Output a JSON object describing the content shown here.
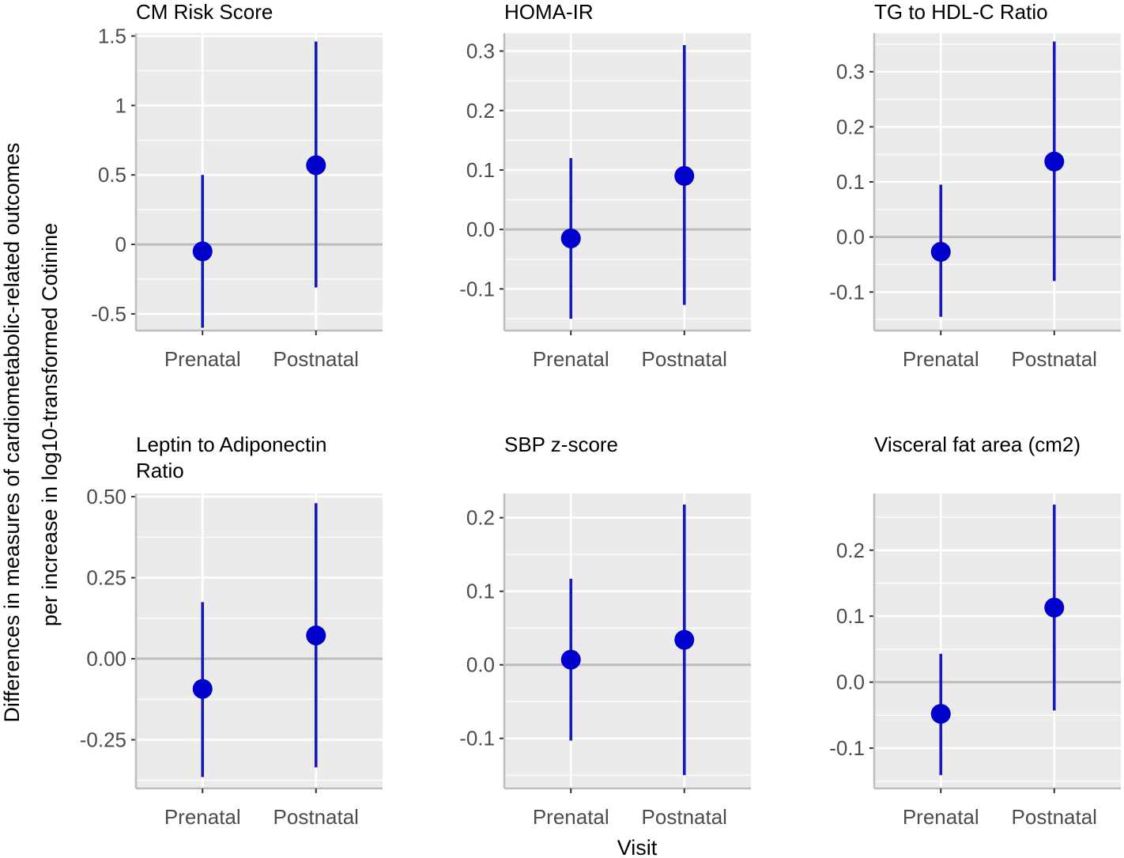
{
  "chart_data": {
    "type": "scatter",
    "description_free": true,
    "xlabel": "Visit",
    "ylabel_line1": "Differences in measures of cardiometabolic-related outcomes",
    "ylabel_line2": "per increase in log10-transformed Cotinine",
    "categories": [
      "Prenatal",
      "Postnatal"
    ],
    "point_color": "#0000CD",
    "line_color": "#1919B8",
    "panel_bg": "#EBEBEB",
    "grid_color": "#FFFFFF",
    "zero_line_color": "#BDBDBD",
    "panels": [
      {
        "title_lines": [
          "CM Risk Score"
        ],
        "ylim": [
          -0.62,
          1.52
        ],
        "ticks": [
          -0.5,
          0,
          0.5,
          1,
          1.5
        ],
        "tick_labels": [
          "-0.5",
          "0",
          "0.5",
          "1",
          "1.5"
        ],
        "estimates": [
          -0.05,
          0.57
        ],
        "lower": [
          -0.6,
          -0.31
        ],
        "upper": [
          0.5,
          1.46
        ]
      },
      {
        "title_lines": [
          "HOMA-IR"
        ],
        "ylim": [
          -0.17,
          0.33
        ],
        "ticks": [
          -0.1,
          0.0,
          0.1,
          0.2,
          0.3
        ],
        "tick_labels": [
          "-0.1",
          "0.0",
          "0.1",
          "0.2",
          "0.3"
        ],
        "estimates": [
          -0.015,
          0.09
        ],
        "lower": [
          -0.15,
          -0.127
        ],
        "upper": [
          0.12,
          0.31
        ]
      },
      {
        "title_lines": [
          "TG to HDL-C Ratio"
        ],
        "ylim": [
          -0.17,
          0.37
        ],
        "ticks": [
          -0.1,
          0.0,
          0.1,
          0.2,
          0.3
        ],
        "tick_labels": [
          "-0.1",
          "0.0",
          "0.1",
          "0.2",
          "0.3"
        ],
        "estimates": [
          -0.027,
          0.137
        ],
        "lower": [
          -0.145,
          -0.08
        ],
        "upper": [
          0.095,
          0.355
        ]
      },
      {
        "title_lines": [
          "Leptin to Adiponectin",
          "Ratio"
        ],
        "ylim": [
          -0.4,
          0.51
        ],
        "ticks": [
          -0.25,
          0.0,
          0.25,
          0.5
        ],
        "tick_labels": [
          "-0.25",
          "0.00",
          "0.25",
          "0.50"
        ],
        "estimates": [
          -0.093,
          0.072
        ],
        "lower": [
          -0.365,
          -0.335
        ],
        "upper": [
          0.175,
          0.48
        ]
      },
      {
        "title_lines": [
          "SBP z-score"
        ],
        "ylim": [
          -0.168,
          0.233
        ],
        "ticks": [
          -0.1,
          0.0,
          0.1,
          0.2
        ],
        "tick_labels": [
          "-0.1",
          "0.0",
          "0.1",
          "0.2"
        ],
        "estimates": [
          0.007,
          0.034
        ],
        "lower": [
          -0.103,
          -0.15
        ],
        "upper": [
          0.117,
          0.218
        ]
      },
      {
        "title_lines": [
          "Visceral fat area (cm2)"
        ],
        "ylim": [
          -0.161,
          0.286
        ],
        "ticks": [
          -0.1,
          0.0,
          0.1,
          0.2
        ],
        "tick_labels": [
          "-0.1",
          "0.0",
          "0.1",
          "0.2"
        ],
        "estimates": [
          -0.048,
          0.113
        ],
        "lower": [
          -0.141,
          -0.043
        ],
        "upper": [
          0.043,
          0.269
        ]
      }
    ]
  }
}
